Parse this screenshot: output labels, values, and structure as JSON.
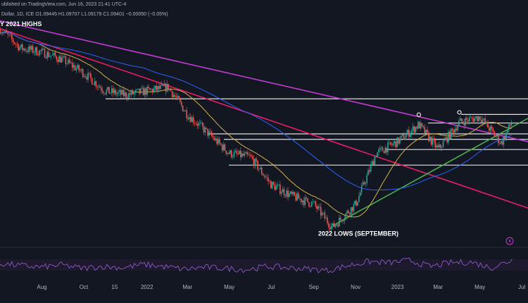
{
  "header": {
    "published_line": "ublished on TradingView.com, Jun 16, 2023 21:41 UTC-4",
    "instrument_line": "Dollar, 1D, ICE  O1.09445  H1.09707  L1.09179  C1.09401  −0.00050 (−0.05%)"
  },
  "colors": {
    "background": "#131722",
    "candle_up": "#26a69a",
    "candle_down": "#ef5350",
    "ma_fast": "#d4b04c",
    "ma_slow": "#2962ff",
    "trend_magenta": "#c23bd4",
    "trend_red": "#e91e63",
    "trend_green": "#4caf50",
    "support_lines": "#e0e0e0",
    "rsi_line": "#9c5fd6",
    "bolt": "#c23bd4"
  },
  "chart_data": {
    "type": "candlestick",
    "title": "",
    "annotations": [
      {
        "text": "Y 2021 HIGHS",
        "at": {
          "date": "2021-06",
          "y": 1.2
        }
      },
      {
        "text": "2022 LOWS (SEPTEMBER)",
        "at": {
          "date": "2022-09-28",
          "y": 0.975
        }
      }
    ],
    "x_axis": {
      "ticks": [
        "Aug",
        "Oct",
        "15",
        "2022",
        "Mar",
        "May",
        "Jul",
        "Sep",
        "Nov",
        "2023",
        "Mar",
        "May",
        "Jul"
      ]
    },
    "ylim": [
      0.94,
      1.23
    ],
    "price_path": [
      {
        "date": "2021-06-01",
        "close": 1.215
      },
      {
        "date": "2021-07-01",
        "close": 1.19
      },
      {
        "date": "2021-08-01",
        "close": 1.185
      },
      {
        "date": "2021-09-01",
        "close": 1.175
      },
      {
        "date": "2021-10-01",
        "close": 1.158
      },
      {
        "date": "2021-11-01",
        "close": 1.135
      },
      {
        "date": "2021-12-01",
        "close": 1.13
      },
      {
        "date": "2022-01-01",
        "close": 1.135
      },
      {
        "date": "2022-02-01",
        "close": 1.14
      },
      {
        "date": "2022-03-01",
        "close": 1.105
      },
      {
        "date": "2022-04-01",
        "close": 1.08
      },
      {
        "date": "2022-05-01",
        "close": 1.055
      },
      {
        "date": "2022-06-01",
        "close": 1.05
      },
      {
        "date": "2022-07-01",
        "close": 1.015
      },
      {
        "date": "2022-08-01",
        "close": 1.0
      },
      {
        "date": "2022-09-01",
        "close": 0.99
      },
      {
        "date": "2022-09-28",
        "close": 0.96
      },
      {
        "date": "2022-11-01",
        "close": 0.99
      },
      {
        "date": "2022-12-01",
        "close": 1.055
      },
      {
        "date": "2023-01-01",
        "close": 1.07
      },
      {
        "date": "2023-02-01",
        "close": 1.092
      },
      {
        "date": "2023-03-01",
        "close": 1.06
      },
      {
        "date": "2023-04-01",
        "close": 1.095
      },
      {
        "date": "2023-05-01",
        "close": 1.102
      },
      {
        "date": "2023-06-01",
        "close": 1.068
      },
      {
        "date": "2023-06-16",
        "close": 1.094
      }
    ],
    "horizontal_levels": [
      1.125,
      1.105,
      1.094,
      1.08,
      1.073,
      1.06,
      1.04
    ],
    "trendlines": [
      {
        "name": "magenta",
        "from": {
          "date": "2021-06-01",
          "y": 1.225
        },
        "to": {
          "date": "2023-07-10",
          "y": 1.07
        }
      },
      {
        "name": "red",
        "from": {
          "date": "2021-06-01",
          "y": 1.215
        },
        "to": {
          "date": "2023-07-10",
          "y": 0.985
        }
      },
      {
        "name": "green",
        "from": {
          "date": "2022-09-28",
          "y": 0.962
        },
        "to": {
          "date": "2023-07-10",
          "y": 1.1
        }
      }
    ],
    "rsi": {
      "ylim": [
        0,
        100
      ],
      "values": [
        55,
        48,
        42,
        50,
        38,
        45,
        40,
        52,
        44,
        35,
        42,
        38,
        33,
        45,
        40,
        36,
        30,
        48,
        62,
        58,
        66,
        44,
        58,
        60,
        40,
        68
      ]
    }
  }
}
